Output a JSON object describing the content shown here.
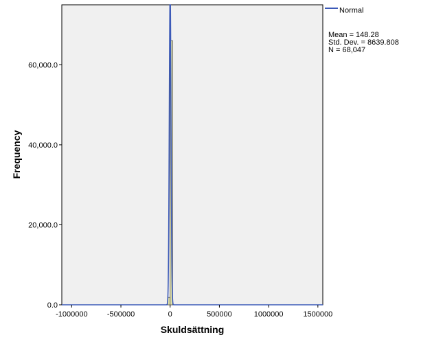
{
  "chart_data": {
    "type": "bar",
    "subtype": "histogram",
    "title": "",
    "xlabel": "Skuldsättning",
    "ylabel": "Frequency",
    "xlim": [
      -1100000,
      1550000
    ],
    "ylim": [
      0,
      75000
    ],
    "x_ticks": [
      {
        "value": -1000000,
        "label": "-1000000"
      },
      {
        "value": -500000,
        "label": "-500000"
      },
      {
        "value": 0,
        "label": "0"
      },
      {
        "value": 500000,
        "label": "500000"
      },
      {
        "value": 1000000,
        "label": "1000000"
      },
      {
        "value": 1500000,
        "label": "1500000"
      }
    ],
    "y_ticks": [
      {
        "value": 0,
        "label": "0.0"
      },
      {
        "value": 20000,
        "label": "20,000.0"
      },
      {
        "value": 40000,
        "label": "40,000.0"
      },
      {
        "value": 60000,
        "label": "60,000.0"
      }
    ],
    "bins": [
      {
        "x0": -25000,
        "x1": 0,
        "count": 1850
      },
      {
        "x0": 0,
        "x1": 25000,
        "count": 66050
      }
    ],
    "series": [
      {
        "name": "Normal",
        "type": "line",
        "mean": 148.28,
        "std": 8639.808
      }
    ],
    "legend": {
      "placement": "top-right",
      "entries": [
        "Normal"
      ],
      "stats": [
        "Mean = 148.28",
        "Std. Dev. = 8639.808",
        "N = 68,047"
      ]
    },
    "colors": {
      "plot_bg": "#f0f0f0",
      "bar_fill": "#e6e6a8",
      "bar_stroke": "#555555",
      "curve": "#3c5ab8"
    },
    "grid": false
  }
}
